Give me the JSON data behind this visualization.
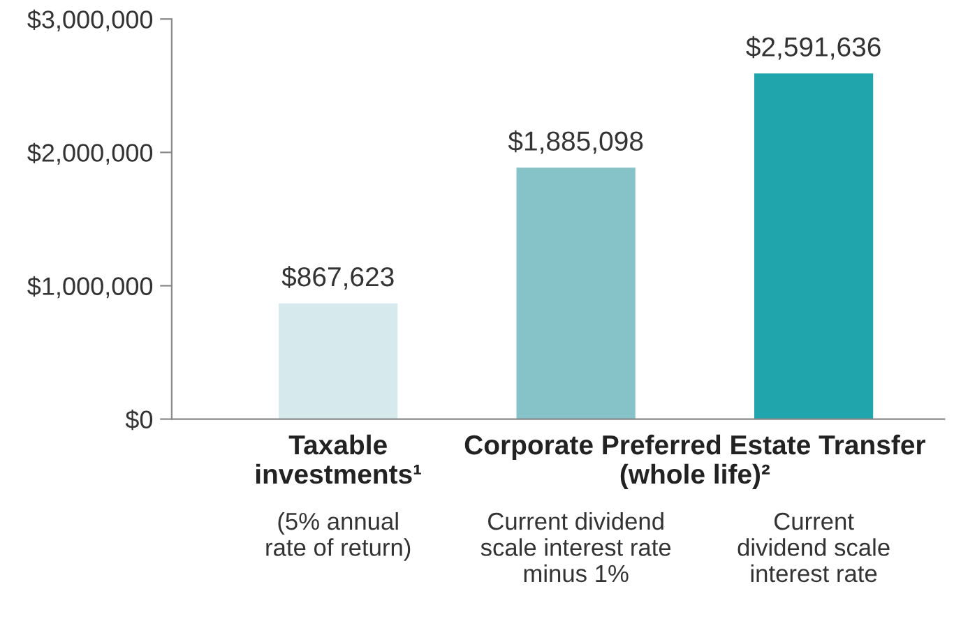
{
  "chart_data": {
    "type": "bar",
    "categories": [
      "(5% annual\nrate of return)",
      "Current dividend\nscale interest rate\nminus 1%",
      "Current\ndividend scale\ninterest rate"
    ],
    "values": [
      867623,
      1885098,
      2591636
    ],
    "colors": [
      "#d6e9ec",
      "#86c3c8",
      "#1fa5ab"
    ],
    "value_labels": [
      "$867,623",
      "$1,885,098",
      "$2,591,636"
    ],
    "annotations": [
      "Taxable\ninvestments¹",
      "Corporate Preferred Estate Transfer\n(whole life)²"
    ],
    "ylim": [
      0,
      3000000
    ],
    "yticks": [
      {
        "value": 0,
        "label": "$0"
      },
      {
        "value": 1000000,
        "label": "$1,000,000"
      },
      {
        "value": 2000000,
        "label": "$2,000,000"
      },
      {
        "value": 3000000,
        "label": "$3,000,000"
      }
    ],
    "grid": false,
    "legend": false
  }
}
